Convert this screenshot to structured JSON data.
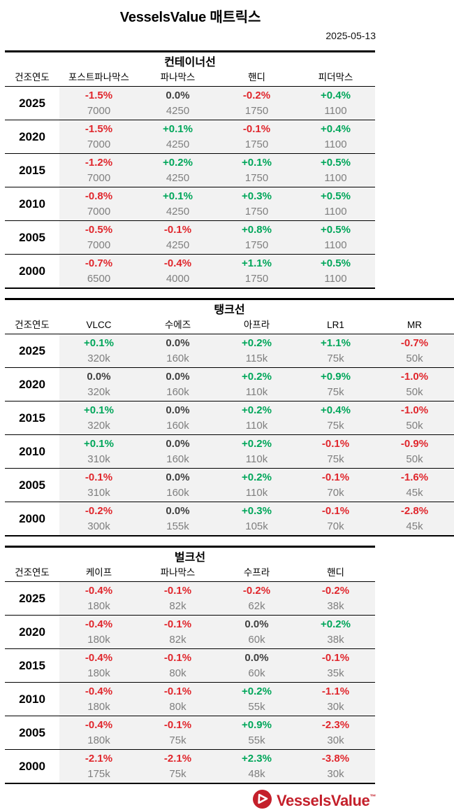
{
  "header": {
    "title": "VesselsValue 매트릭스",
    "date": "2025-05-13"
  },
  "colors": {
    "negative": "#E0262C",
    "positive": "#00A65A",
    "neutral": "#3F3F3F",
    "value_gray": "#7F7F7F",
    "brand_red": "#C4202B"
  },
  "year_column_label": "건조연도",
  "tables": [
    {
      "title": "컨테이너선",
      "columns": [
        "포스트파나막스",
        "파나막스",
        "핸디",
        "피더막스"
      ],
      "rows": [
        {
          "year": "2025",
          "cells": [
            {
              "pct": "-1.5%",
              "value": "7000"
            },
            {
              "pct": "0.0%",
              "value": "4250"
            },
            {
              "pct": "-0.2%",
              "value": "1750"
            },
            {
              "pct": "+0.4%",
              "value": "1100"
            }
          ]
        },
        {
          "year": "2020",
          "cells": [
            {
              "pct": "-1.5%",
              "value": "7000"
            },
            {
              "pct": "+0.1%",
              "value": "4250"
            },
            {
              "pct": "-0.1%",
              "value": "1750"
            },
            {
              "pct": "+0.4%",
              "value": "1100"
            }
          ]
        },
        {
          "year": "2015",
          "cells": [
            {
              "pct": "-1.2%",
              "value": "7000"
            },
            {
              "pct": "+0.2%",
              "value": "4250"
            },
            {
              "pct": "+0.1%",
              "value": "1750"
            },
            {
              "pct": "+0.5%",
              "value": "1100"
            }
          ]
        },
        {
          "year": "2010",
          "cells": [
            {
              "pct": "-0.8%",
              "value": "7000"
            },
            {
              "pct": "+0.1%",
              "value": "4250"
            },
            {
              "pct": "+0.3%",
              "value": "1750"
            },
            {
              "pct": "+0.5%",
              "value": "1100"
            }
          ]
        },
        {
          "year": "2005",
          "cells": [
            {
              "pct": "-0.5%",
              "value": "7000"
            },
            {
              "pct": "-0.1%",
              "value": "4250"
            },
            {
              "pct": "+0.8%",
              "value": "1750"
            },
            {
              "pct": "+0.5%",
              "value": "1100"
            }
          ]
        },
        {
          "year": "2000",
          "cells": [
            {
              "pct": "-0.7%",
              "value": "6500"
            },
            {
              "pct": "-0.4%",
              "value": "4000"
            },
            {
              "pct": "+1.1%",
              "value": "1750"
            },
            {
              "pct": "+0.5%",
              "value": "1100"
            }
          ]
        }
      ]
    },
    {
      "title": "탱크선",
      "columns": [
        "VLCC",
        "수에즈",
        "아프라",
        "LR1",
        "MR"
      ],
      "rows": [
        {
          "year": "2025",
          "cells": [
            {
              "pct": "+0.1%",
              "value": "320k"
            },
            {
              "pct": "0.0%",
              "value": "160k"
            },
            {
              "pct": "+0.2%",
              "value": "115k"
            },
            {
              "pct": "+1.1%",
              "value": "75k"
            },
            {
              "pct": "-0.7%",
              "value": "50k"
            }
          ]
        },
        {
          "year": "2020",
          "cells": [
            {
              "pct": "0.0%",
              "value": "320k"
            },
            {
              "pct": "0.0%",
              "value": "160k"
            },
            {
              "pct": "+0.2%",
              "value": "110k"
            },
            {
              "pct": "+0.9%",
              "value": "75k"
            },
            {
              "pct": "-1.0%",
              "value": "50k"
            }
          ]
        },
        {
          "year": "2015",
          "cells": [
            {
              "pct": "+0.1%",
              "value": "320k"
            },
            {
              "pct": "0.0%",
              "value": "160k"
            },
            {
              "pct": "+0.2%",
              "value": "110k"
            },
            {
              "pct": "+0.4%",
              "value": "75k"
            },
            {
              "pct": "-1.0%",
              "value": "50k"
            }
          ]
        },
        {
          "year": "2010",
          "cells": [
            {
              "pct": "+0.1%",
              "value": "310k"
            },
            {
              "pct": "0.0%",
              "value": "160k"
            },
            {
              "pct": "+0.2%",
              "value": "110k"
            },
            {
              "pct": "-0.1%",
              "value": "75k"
            },
            {
              "pct": "-0.9%",
              "value": "50k"
            }
          ]
        },
        {
          "year": "2005",
          "cells": [
            {
              "pct": "-0.1%",
              "value": "310k"
            },
            {
              "pct": "0.0%",
              "value": "160k"
            },
            {
              "pct": "+0.2%",
              "value": "110k"
            },
            {
              "pct": "-0.1%",
              "value": "70k"
            },
            {
              "pct": "-1.6%",
              "value": "45k"
            }
          ]
        },
        {
          "year": "2000",
          "cells": [
            {
              "pct": "-0.2%",
              "value": "300k"
            },
            {
              "pct": "0.0%",
              "value": "155k"
            },
            {
              "pct": "+0.3%",
              "value": "105k"
            },
            {
              "pct": "-0.1%",
              "value": "70k"
            },
            {
              "pct": "-2.8%",
              "value": "45k"
            }
          ]
        }
      ]
    },
    {
      "title": "벌크선",
      "columns": [
        "케이프",
        "파나막스",
        "수프라",
        "핸디"
      ],
      "rows": [
        {
          "year": "2025",
          "cells": [
            {
              "pct": "-0.4%",
              "value": "180k"
            },
            {
              "pct": "-0.1%",
              "value": "82k"
            },
            {
              "pct": "-0.2%",
              "value": "62k"
            },
            {
              "pct": "-0.2%",
              "value": "38k"
            }
          ]
        },
        {
          "year": "2020",
          "cells": [
            {
              "pct": "-0.4%",
              "value": "180k"
            },
            {
              "pct": "-0.1%",
              "value": "82k"
            },
            {
              "pct": "0.0%",
              "value": "60k"
            },
            {
              "pct": "+0.2%",
              "value": "38k"
            }
          ]
        },
        {
          "year": "2015",
          "cells": [
            {
              "pct": "-0.4%",
              "value": "180k"
            },
            {
              "pct": "-0.1%",
              "value": "80k"
            },
            {
              "pct": "0.0%",
              "value": "60k"
            },
            {
              "pct": "-0.1%",
              "value": "35k"
            }
          ]
        },
        {
          "year": "2010",
          "cells": [
            {
              "pct": "-0.4%",
              "value": "180k"
            },
            {
              "pct": "-0.1%",
              "value": "80k"
            },
            {
              "pct": "+0.2%",
              "value": "55k"
            },
            {
              "pct": "-1.1%",
              "value": "30k"
            }
          ]
        },
        {
          "year": "2005",
          "cells": [
            {
              "pct": "-0.4%",
              "value": "180k"
            },
            {
              "pct": "-0.1%",
              "value": "75k"
            },
            {
              "pct": "+0.9%",
              "value": "55k"
            },
            {
              "pct": "-2.3%",
              "value": "30k"
            }
          ]
        },
        {
          "year": "2000",
          "cells": [
            {
              "pct": "-2.1%",
              "value": "175k"
            },
            {
              "pct": "-2.1%",
              "value": "75k"
            },
            {
              "pct": "+2.3%",
              "value": "48k"
            },
            {
              "pct": "-3.8%",
              "value": "30k"
            }
          ]
        }
      ]
    }
  ],
  "footer": {
    "logo_text": "VesselsValue",
    "trademark": "™"
  }
}
